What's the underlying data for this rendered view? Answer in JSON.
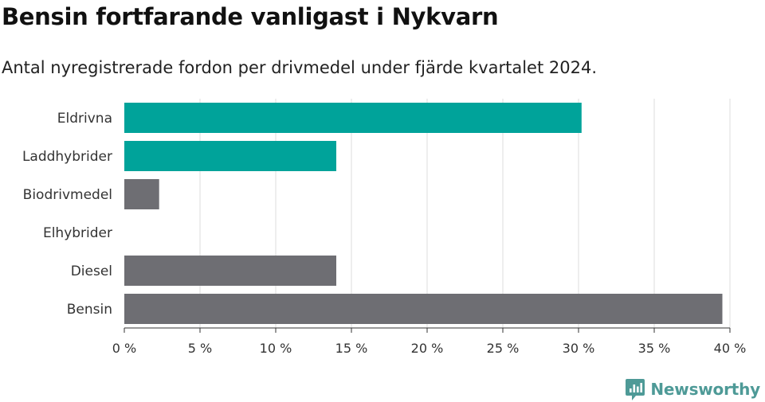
{
  "header": {
    "title": "Bensin fortfarande vanligast i Nykvarn",
    "subtitle": "Antal nyregistrerade fordon per drivmedel under fjärde kvartalet 2024."
  },
  "chart_data": {
    "type": "bar",
    "orientation": "horizontal",
    "categories": [
      "Eldrivna",
      "Laddhybrider",
      "Biodrivmedel",
      "Elhybrider",
      "Diesel",
      "Bensin"
    ],
    "values": [
      30.2,
      14.0,
      2.3,
      0,
      14.0,
      39.5
    ],
    "colors": [
      "#00a39a",
      "#00a39a",
      "#6e6e73",
      "#6e6e73",
      "#6e6e73",
      "#6e6e73"
    ],
    "xlim": [
      0,
      40
    ],
    "xticks": [
      0,
      5,
      10,
      15,
      20,
      25,
      30,
      35,
      40
    ],
    "tick_labels": [
      "0 %",
      "5 %",
      "10 %",
      "15 %",
      "20 %",
      "25 %",
      "30 %",
      "35 %",
      "40 %"
    ],
    "grid": true,
    "title": "Bensin fortfarande vanligast i Nykvarn",
    "xlabel": "",
    "ylabel": ""
  },
  "branding": {
    "name": "Newsworthy",
    "color": "#4e9a97",
    "icon": "newsworthy-logo-icon"
  }
}
